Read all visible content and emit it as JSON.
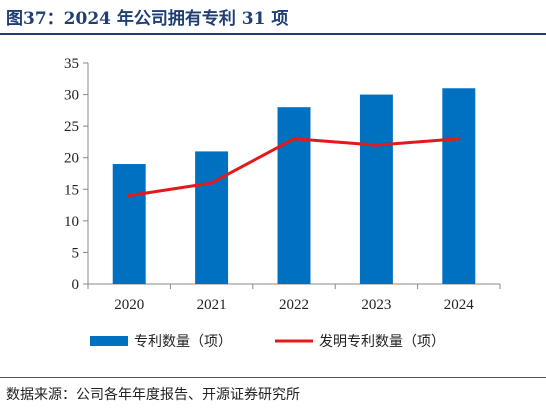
{
  "header": {
    "title": "图37：2024 年公司拥有专利 31 项"
  },
  "footer": {
    "source": "数据来源：公司各年年度报告、开源证券研究所"
  },
  "colors": {
    "bar": "#0070c0",
    "line": "#e31a1c",
    "title": "#1f3f74"
  },
  "chart_data": {
    "type": "bar",
    "title": "",
    "xlabel": "",
    "ylabel": "",
    "categories": [
      "2020",
      "2021",
      "2022",
      "2023",
      "2024"
    ],
    "ylim": [
      0,
      35
    ],
    "yticks": [
      0,
      5,
      10,
      15,
      20,
      25,
      30,
      35
    ],
    "grid": false,
    "legend_position": "bottom",
    "series": [
      {
        "name": "专利数量（项）",
        "type": "bar",
        "color": "#0070c0",
        "values": [
          19,
          21,
          28,
          30,
          31
        ]
      },
      {
        "name": "发明专利数量（项）",
        "type": "line",
        "color": "#e31a1c",
        "values": [
          14,
          16,
          23,
          22,
          23
        ]
      }
    ]
  }
}
